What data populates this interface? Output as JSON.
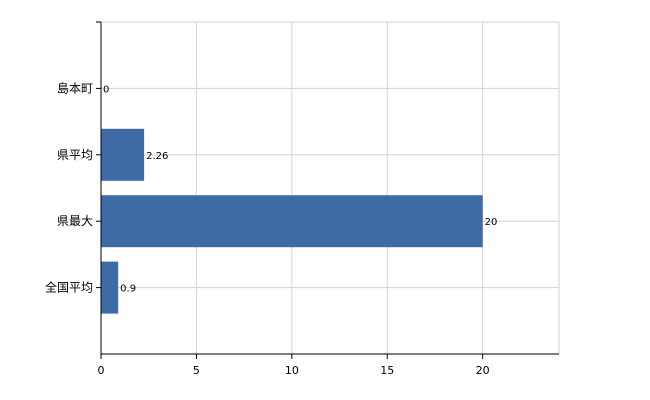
{
  "chart_data": {
    "type": "bar",
    "orientation": "horizontal",
    "categories": [
      "島本町",
      "県平均",
      "県最大",
      "全国平均"
    ],
    "values": [
      0,
      2.26,
      20,
      0.9
    ],
    "data_labels": [
      "0",
      "2.26",
      "20",
      "0.9"
    ],
    "xlim": [
      0,
      24
    ],
    "xticks": [
      0,
      5,
      10,
      15,
      20
    ],
    "xtick_labels": [
      "0",
      "5",
      "10",
      "15",
      "20"
    ],
    "grid": true,
    "legend": "none",
    "bar_color": "#3e6aa6",
    "grid_color": "#d3d3d3"
  }
}
